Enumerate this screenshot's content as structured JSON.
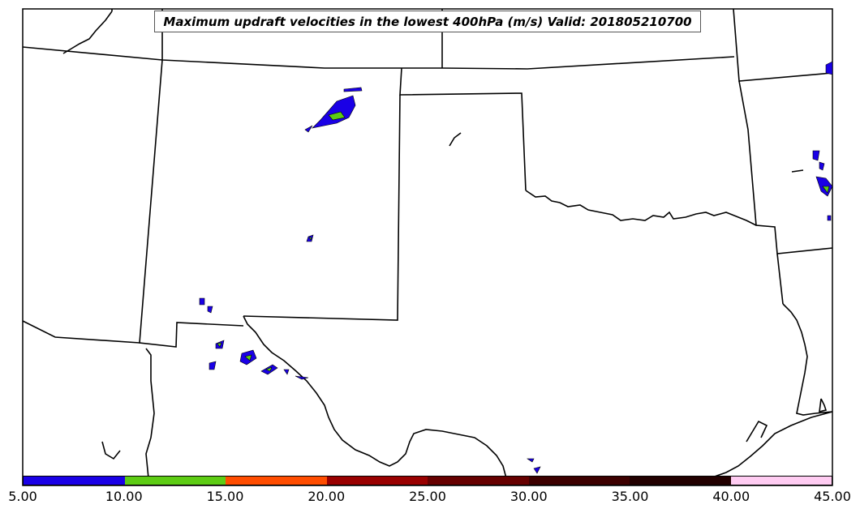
{
  "title": "Maximum updraft velocities in the lowest 400hPa (m/s) Valid: 201805210700",
  "colorbar": {
    "ticks": [
      "5.00",
      "10.00",
      "15.00",
      "20.00",
      "25.00",
      "30.00",
      "35.00",
      "40.00",
      "45.00"
    ],
    "colors": [
      "#1a00e6",
      "#5dcc14",
      "#ff4d00",
      "#990000",
      "#660000",
      "#3d0000",
      "#220000",
      "#ffccf2"
    ],
    "min": 5,
    "max": 45
  },
  "features": {
    "land_color": "#ffffff",
    "border_color": "#000000",
    "updraft_low_color": "#1a00e6",
    "updraft_mid_color": "#5dcc14"
  }
}
